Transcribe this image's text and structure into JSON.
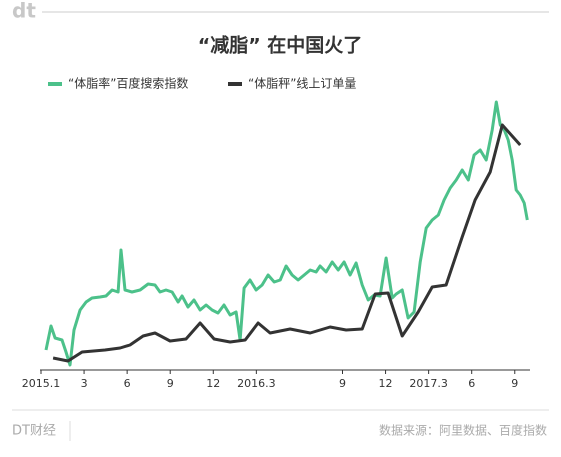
{
  "chart_data": {
    "type": "line",
    "logo": "dt",
    "title": "“减脂” 在中国火了",
    "footer_brand": "DT财经",
    "source": "数据来源：阿里数据、百度指数",
    "xlim": [
      0,
      34.2
    ],
    "ylim": [
      0,
      280
    ],
    "xticks": [
      {
        "value": 0,
        "label": "2015.1"
      },
      3,
      6,
      9,
      12,
      {
        "value": 15,
        "label": "2016.3"
      },
      {
        "value": 21,
        "label": "9"
      },
      {
        "value": 24,
        "label": "12"
      },
      {
        "value": 27,
        "label": "2017.3"
      },
      {
        "value": 30,
        "label": "6"
      },
      {
        "value": 33,
        "label": "9"
      }
    ],
    "series": [
      {
        "name": "“体脂率”百度搜索指数",
        "color": "#4cc18a",
        "x": [
          0.35,
          0.7,
          0.98,
          1.46,
          1.74,
          2.02,
          2.3,
          2.72,
          3.14,
          3.55,
          4.11,
          4.53,
          4.95,
          5.37,
          5.57,
          5.85,
          6.34,
          6.9,
          7.46,
          7.94,
          8.29,
          8.71,
          9.13,
          9.55,
          9.83,
          10.24,
          10.66,
          11.08,
          11.5,
          11.92,
          12.33,
          12.75,
          13.17,
          13.59,
          13.87,
          14.15,
          14.56,
          14.98,
          15.4,
          15.82,
          16.24,
          16.66,
          17.07,
          17.49,
          17.91,
          18.33,
          18.75,
          19.16,
          19.44,
          19.86,
          20.28,
          20.7,
          21.11,
          21.53,
          21.95,
          22.37,
          22.79,
          23.21,
          23.62,
          24.04,
          24.46,
          24.74,
          25.16,
          25.57,
          25.99,
          26.41,
          26.83,
          27.25,
          27.67,
          28.08,
          28.5,
          28.92,
          29.34,
          29.76,
          30.17,
          30.59,
          31.01,
          31.43,
          31.71,
          31.99,
          32.27,
          32.54,
          32.82,
          33.1,
          33.38,
          33.66,
          33.87
        ],
        "values": [
          20,
          44,
          32,
          30,
          18,
          5,
          40,
          60,
          68,
          72,
          73,
          74,
          80,
          78,
          120,
          80,
          78,
          80,
          86,
          85,
          78,
          80,
          78,
          68,
          74,
          63,
          70,
          60,
          65,
          60,
          57,
          65,
          55,
          58,
          30,
          82,
          90,
          80,
          85,
          95,
          88,
          90,
          104,
          95,
          90,
          95,
          100,
          98,
          104,
          98,
          108,
          100,
          108,
          95,
          107,
          85,
          70,
          75,
          74,
          112,
          72,
          76,
          80,
          52,
          58,
          108,
          142,
          150,
          155,
          170,
          182,
          190,
          200,
          190,
          215,
          220,
          210,
          240,
          268,
          245,
          240,
          230,
          210,
          180,
          175,
          167,
          150
        ]
      },
      {
        "name": "“体脂秤”线上订单量",
        "color": "#333333",
        "x": [
          0.84,
          1.88,
          2.86,
          4.46,
          5.51,
          6.2,
          7.11,
          7.94,
          8.99,
          10.1,
          11.08,
          12.06,
          13.17,
          14.22,
          15.12,
          15.96,
          17.35,
          18.75,
          20.14,
          21.25,
          22.37,
          23.28,
          24.18,
          25.16,
          26.27,
          27.25,
          28.22,
          29.34,
          30.24,
          31.29,
          32.13,
          33.38
        ],
        "values": [
          12,
          9,
          18,
          20,
          22,
          25,
          34,
          37,
          29,
          31,
          47,
          31,
          28,
          30,
          47,
          37,
          41,
          37,
          43,
          40,
          41,
          76,
          77,
          34,
          58,
          83,
          85,
          133,
          170,
          198,
          245,
          225
        ]
      }
    ]
  }
}
